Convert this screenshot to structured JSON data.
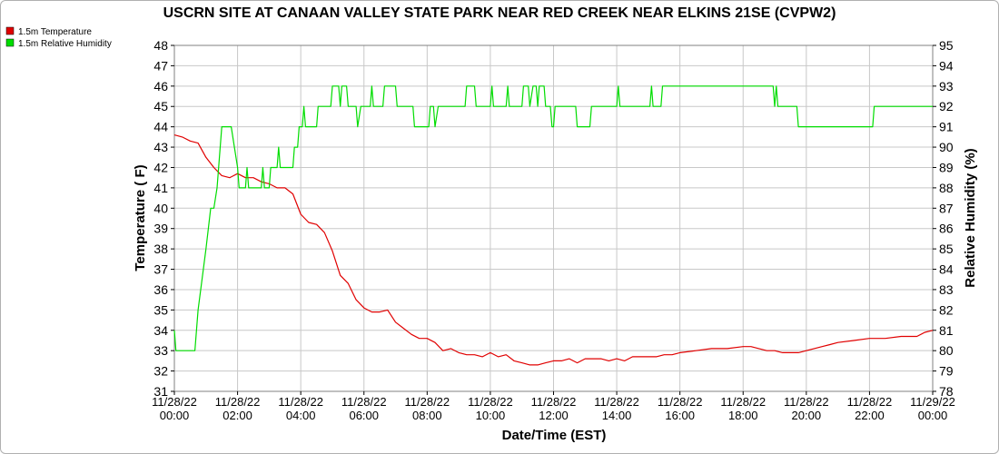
{
  "chart_data": {
    "type": "line",
    "title": "USCRN SITE AT CANAAN VALLEY STATE PARK NEAR RED CREEK NEAR ELKINS 21SE (CVPW2)",
    "xlabel": "Date/Time (EST)",
    "ylabel": "Temperature ( F)",
    "y2label": "Relative Humidity (%)",
    "xlim": [
      0,
      24
    ],
    "ylim": [
      31,
      48
    ],
    "y2lim": [
      78,
      95
    ],
    "grid": true,
    "legend_position": "top-left",
    "x_tick_labels": [
      {
        "date": "11/28/22",
        "time": "00:00"
      },
      {
        "date": "11/28/22",
        "time": "02:00"
      },
      {
        "date": "11/28/22",
        "time": "04:00"
      },
      {
        "date": "11/28/22",
        "time": "06:00"
      },
      {
        "date": "11/28/22",
        "time": "08:00"
      },
      {
        "date": "11/28/22",
        "time": "10:00"
      },
      {
        "date": "11/28/22",
        "time": "12:00"
      },
      {
        "date": "11/28/22",
        "time": "14:00"
      },
      {
        "date": "11/28/22",
        "time": "16:00"
      },
      {
        "date": "11/28/22",
        "time": "18:00"
      },
      {
        "date": "11/28/22",
        "time": "20:00"
      },
      {
        "date": "11/28/22",
        "time": "22:00"
      },
      {
        "date": "11/29/22",
        "time": "00:00"
      }
    ],
    "y_ticks": [
      31,
      32,
      33,
      34,
      35,
      36,
      37,
      38,
      39,
      40,
      41,
      42,
      43,
      44,
      45,
      46,
      47,
      48
    ],
    "y2_ticks": [
      78,
      79,
      80,
      81,
      82,
      83,
      84,
      85,
      86,
      87,
      88,
      89,
      90,
      91,
      92,
      93,
      94,
      95
    ],
    "series": [
      {
        "name": "1.5m Temperature",
        "axis": "left",
        "color": "#e00000",
        "points": [
          [
            0,
            43.6
          ],
          [
            0.25,
            43.5
          ],
          [
            0.5,
            43.3
          ],
          [
            0.75,
            43.2
          ],
          [
            1.0,
            42.5
          ],
          [
            1.25,
            42.0
          ],
          [
            1.5,
            41.6
          ],
          [
            1.75,
            41.5
          ],
          [
            2.0,
            41.7
          ],
          [
            2.25,
            41.5
          ],
          [
            2.5,
            41.5
          ],
          [
            2.75,
            41.3
          ],
          [
            3.0,
            41.2
          ],
          [
            3.25,
            41.0
          ],
          [
            3.5,
            41.0
          ],
          [
            3.75,
            40.7
          ],
          [
            4.0,
            39.7
          ],
          [
            4.25,
            39.3
          ],
          [
            4.5,
            39.2
          ],
          [
            4.75,
            38.8
          ],
          [
            5.0,
            37.9
          ],
          [
            5.25,
            36.7
          ],
          [
            5.5,
            36.3
          ],
          [
            5.75,
            35.5
          ],
          [
            6.0,
            35.1
          ],
          [
            6.25,
            34.9
          ],
          [
            6.5,
            34.9
          ],
          [
            6.75,
            35.0
          ],
          [
            7.0,
            34.4
          ],
          [
            7.25,
            34.1
          ],
          [
            7.5,
            33.8
          ],
          [
            7.75,
            33.6
          ],
          [
            8.0,
            33.6
          ],
          [
            8.25,
            33.4
          ],
          [
            8.5,
            33.0
          ],
          [
            8.75,
            33.1
          ],
          [
            9.0,
            32.9
          ],
          [
            9.25,
            32.8
          ],
          [
            9.5,
            32.8
          ],
          [
            9.75,
            32.7
          ],
          [
            10.0,
            32.9
          ],
          [
            10.25,
            32.7
          ],
          [
            10.5,
            32.8
          ],
          [
            10.75,
            32.5
          ],
          [
            11.0,
            32.4
          ],
          [
            11.25,
            32.3
          ],
          [
            11.5,
            32.3
          ],
          [
            11.75,
            32.4
          ],
          [
            12.0,
            32.5
          ],
          [
            12.25,
            32.5
          ],
          [
            12.5,
            32.6
          ],
          [
            12.75,
            32.4
          ],
          [
            13.0,
            32.6
          ],
          [
            13.25,
            32.6
          ],
          [
            13.5,
            32.6
          ],
          [
            13.75,
            32.5
          ],
          [
            14.0,
            32.6
          ],
          [
            14.25,
            32.5
          ],
          [
            14.5,
            32.7
          ],
          [
            14.75,
            32.7
          ],
          [
            15.0,
            32.7
          ],
          [
            15.25,
            32.7
          ],
          [
            15.5,
            32.8
          ],
          [
            15.75,
            32.8
          ],
          [
            16.0,
            32.9
          ],
          [
            16.5,
            33.0
          ],
          [
            17.0,
            33.1
          ],
          [
            17.5,
            33.1
          ],
          [
            18.0,
            33.2
          ],
          [
            18.25,
            33.2
          ],
          [
            18.5,
            33.1
          ],
          [
            18.75,
            33.0
          ],
          [
            19.0,
            33.0
          ],
          [
            19.25,
            32.9
          ],
          [
            19.5,
            32.9
          ],
          [
            19.75,
            32.9
          ],
          [
            20.0,
            33.0
          ],
          [
            20.25,
            33.1
          ],
          [
            20.5,
            33.2
          ],
          [
            20.75,
            33.3
          ],
          [
            21.0,
            33.4
          ],
          [
            21.5,
            33.5
          ],
          [
            22.0,
            33.6
          ],
          [
            22.5,
            33.6
          ],
          [
            23.0,
            33.7
          ],
          [
            23.25,
            33.7
          ],
          [
            23.5,
            33.7
          ],
          [
            23.75,
            33.9
          ],
          [
            24.0,
            34.0
          ]
        ]
      },
      {
        "name": "1.5m Relative Humidity",
        "axis": "right",
        "color": "#00dd00",
        "points": [
          [
            0,
            81
          ],
          [
            0.05,
            80
          ],
          [
            0.5,
            80
          ],
          [
            0.65,
            80
          ],
          [
            0.75,
            82
          ],
          [
            1.0,
            85
          ],
          [
            1.15,
            87
          ],
          [
            1.25,
            87
          ],
          [
            1.35,
            88
          ],
          [
            1.5,
            91
          ],
          [
            1.75,
            91
          ],
          [
            1.8,
            91
          ],
          [
            1.9,
            90
          ],
          [
            2.0,
            89
          ],
          [
            2.05,
            88
          ],
          [
            2.25,
            88
          ],
          [
            2.3,
            89
          ],
          [
            2.35,
            88
          ],
          [
            2.75,
            88
          ],
          [
            2.8,
            89
          ],
          [
            2.85,
            88
          ],
          [
            3.0,
            88
          ],
          [
            3.05,
            89
          ],
          [
            3.25,
            89
          ],
          [
            3.3,
            90
          ],
          [
            3.35,
            89
          ],
          [
            3.75,
            89
          ],
          [
            3.8,
            90
          ],
          [
            3.9,
            90
          ],
          [
            3.95,
            91
          ],
          [
            4.05,
            91
          ],
          [
            4.1,
            92
          ],
          [
            4.15,
            91
          ],
          [
            4.5,
            91
          ],
          [
            4.55,
            92
          ],
          [
            4.95,
            92
          ],
          [
            5.0,
            93
          ],
          [
            5.2,
            93
          ],
          [
            5.25,
            92
          ],
          [
            5.3,
            93
          ],
          [
            5.45,
            93
          ],
          [
            5.5,
            92
          ],
          [
            5.75,
            92
          ],
          [
            5.8,
            91
          ],
          [
            5.9,
            92
          ],
          [
            6.2,
            92
          ],
          [
            6.25,
            93
          ],
          [
            6.3,
            92
          ],
          [
            6.6,
            92
          ],
          [
            6.65,
            93
          ],
          [
            7.0,
            93
          ],
          [
            7.05,
            92
          ],
          [
            7.55,
            92
          ],
          [
            7.6,
            91
          ],
          [
            8.05,
            91
          ],
          [
            8.1,
            92
          ],
          [
            8.2,
            92
          ],
          [
            8.25,
            91
          ],
          [
            8.35,
            92
          ],
          [
            9.2,
            92
          ],
          [
            9.25,
            93
          ],
          [
            9.5,
            93
          ],
          [
            9.55,
            92
          ],
          [
            10.0,
            92
          ],
          [
            10.05,
            93
          ],
          [
            10.1,
            92
          ],
          [
            10.5,
            92
          ],
          [
            10.55,
            93
          ],
          [
            10.6,
            92
          ],
          [
            11.0,
            92
          ],
          [
            11.05,
            93
          ],
          [
            11.2,
            93
          ],
          [
            11.25,
            92
          ],
          [
            11.35,
            93
          ],
          [
            11.45,
            93
          ],
          [
            11.5,
            92
          ],
          [
            11.55,
            93
          ],
          [
            11.7,
            93
          ],
          [
            11.75,
            92
          ],
          [
            11.9,
            92
          ],
          [
            11.95,
            91
          ],
          [
            12.0,
            91
          ],
          [
            12.05,
            92
          ],
          [
            12.7,
            92
          ],
          [
            12.75,
            91
          ],
          [
            13.15,
            91
          ],
          [
            13.2,
            92
          ],
          [
            14.0,
            92
          ],
          [
            14.05,
            93
          ],
          [
            14.1,
            92
          ],
          [
            15.05,
            92
          ],
          [
            15.1,
            93
          ],
          [
            15.15,
            92
          ],
          [
            15.4,
            92
          ],
          [
            15.45,
            93
          ],
          [
            18.95,
            93
          ],
          [
            19.0,
            92
          ],
          [
            19.05,
            93
          ],
          [
            19.1,
            92
          ],
          [
            19.7,
            92
          ],
          [
            19.75,
            91
          ],
          [
            22.1,
            91
          ],
          [
            22.15,
            92
          ],
          [
            24.0,
            92
          ]
        ]
      }
    ]
  },
  "legend": {
    "items": [
      {
        "label": "1.5m Temperature",
        "color": "#e00000"
      },
      {
        "label": "1.5m Relative Humidity",
        "color": "#00dd00"
      }
    ]
  }
}
